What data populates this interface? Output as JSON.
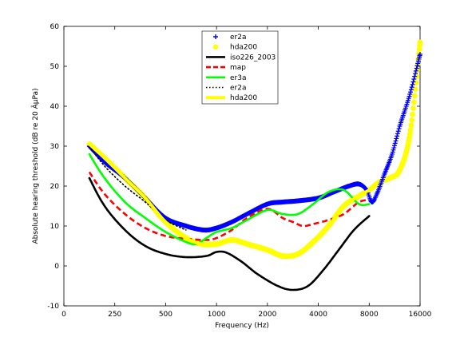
{
  "chart_data": {
    "type": "line",
    "xlabel": "Frequency (Hz)",
    "ylabel": "Absolute hearing threshold (dB re 20 ÂµPa)",
    "x_ticks": [
      {
        "value": 0,
        "label": "0"
      },
      {
        "value": 1,
        "label": "250"
      },
      {
        "value": 2,
        "label": "500"
      },
      {
        "value": 3,
        "label": "1000"
      },
      {
        "value": 4,
        "label": "2000"
      },
      {
        "value": 5,
        "label": "4000"
      },
      {
        "value": 6,
        "label": "8000"
      },
      {
        "value": 7,
        "label": "16000"
      }
    ],
    "xlim": [
      0,
      7
    ],
    "ylim": [
      -10,
      60
    ],
    "y_ticks": [
      -10,
      0,
      10,
      20,
      30,
      40,
      50,
      60
    ],
    "grid": false,
    "legend_position": "top-center",
    "legend": [
      {
        "label": "er2a",
        "color": "#0000ff",
        "style": "plus"
      },
      {
        "label": "hda200",
        "color": "#ffff00",
        "style": "dot"
      },
      {
        "label": "iso226_2003",
        "color": "#000000",
        "style": "solid"
      },
      {
        "label": "map",
        "color": "#ff0000",
        "style": "dashed"
      },
      {
        "label": "er3a",
        "color": "#00ff00",
        "style": "solid"
      },
      {
        "label": "er2a",
        "color": "#000000",
        "style": "dotted"
      },
      {
        "label": "hda200",
        "color": "#ffff00",
        "style": "solid"
      }
    ],
    "series": [
      {
        "name": "er2a",
        "color": "#0000ff",
        "marker": "plus",
        "x": [
          0.5,
          0.8,
          1.2,
          1.6,
          2.0,
          2.4,
          2.75,
          3.0,
          3.3,
          3.6,
          4.0,
          4.3,
          4.6,
          5.0,
          5.3,
          5.6,
          5.8,
          5.95,
          6.05,
          6.15,
          6.3,
          6.45,
          6.6,
          6.8,
          7.0
        ],
        "y": [
          30,
          26,
          22,
          17,
          12,
          10,
          9,
          9.5,
          11,
          13,
          15.5,
          16,
          16.3,
          17,
          18.5,
          20,
          20.5,
          19,
          16,
          18,
          23,
          28,
          35,
          43,
          53
        ]
      },
      {
        "name": "hda200",
        "color": "#ffff00",
        "marker": "dot",
        "x": [
          0.5,
          0.8,
          1.2,
          1.6,
          2.0,
          2.4,
          2.7,
          3.0,
          3.3,
          3.6,
          4.0,
          4.3,
          4.6,
          4.9,
          5.2,
          5.5,
          5.8,
          6.0,
          6.2,
          6.4,
          6.6,
          6.8,
          7.0
        ],
        "y": [
          30.5,
          27,
          22,
          17,
          11,
          7,
          5.5,
          5.5,
          6.5,
          5.5,
          4,
          2.5,
          3,
          6,
          10,
          15,
          17.5,
          19,
          21,
          22,
          24,
          33,
          56
        ]
      },
      {
        "name": "iso226_2003",
        "color": "#000000",
        "style": "solid",
        "x": [
          0.5,
          0.8,
          1.2,
          1.6,
          2.0,
          2.4,
          2.8,
          3.0,
          3.2,
          3.5,
          3.8,
          4.2,
          4.5,
          4.8,
          5.1,
          5.4,
          5.7,
          6.0
        ],
        "y": [
          22,
          15,
          9,
          5,
          3,
          2.2,
          2.5,
          3.5,
          3.3,
          1,
          -2,
          -5,
          -6,
          -5,
          -1,
          4,
          9,
          12.5
        ]
      },
      {
        "name": "map",
        "color": "#ff0000",
        "style": "dashed",
        "x": [
          0.5,
          0.8,
          1.2,
          1.6,
          2.0,
          2.4,
          2.8,
          3.0,
          3.3,
          3.6,
          4.0,
          4.3,
          4.5,
          4.7,
          4.9,
          5.2,
          5.5,
          5.8,
          6.0
        ],
        "y": [
          23.5,
          18,
          13,
          9.5,
          7.5,
          6.8,
          6.5,
          7,
          9,
          12,
          14.3,
          12,
          11,
          10,
          10.5,
          11.5,
          13,
          16,
          16.5
        ]
      },
      {
        "name": "er3a",
        "color": "#00ff00",
        "style": "solid",
        "x": [
          0.5,
          0.8,
          1.2,
          1.6,
          2.0,
          2.4,
          2.6,
          2.8,
          3.0,
          3.3,
          3.6,
          4.0,
          4.3,
          4.6,
          4.9,
          5.2,
          5.5,
          5.8,
          6.0
        ],
        "y": [
          28,
          22,
          16,
          12,
          8.5,
          6,
          5.5,
          7,
          8.5,
          9.5,
          11.5,
          14,
          13,
          13,
          15.5,
          18.5,
          19,
          15.5,
          15.5
        ]
      },
      {
        "name": "er2a",
        "color": "#000000",
        "style": "dotted",
        "x": [
          0.5,
          0.8,
          1.2,
          1.6,
          2.0,
          2.4
        ],
        "y": [
          30,
          25,
          20,
          16,
          11.5,
          9
        ]
      },
      {
        "name": "hda200",
        "color": "#ffff00",
        "style": "solid",
        "x": [
          0.5,
          0.8,
          1.2,
          1.6,
          2.0,
          2.4,
          2.7,
          3.0,
          3.3,
          3.6,
          4.0,
          4.3,
          4.6,
          4.9,
          5.2,
          5.5,
          5.8,
          6.0
        ],
        "y": [
          30.5,
          27,
          22,
          17,
          11,
          7,
          5.5,
          5.5,
          6.5,
          5.5,
          4,
          2.5,
          3,
          6,
          10,
          15,
          17.5,
          19
        ]
      }
    ]
  }
}
